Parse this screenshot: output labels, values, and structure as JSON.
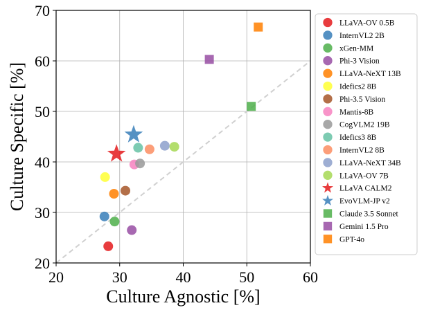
{
  "chart_data": {
    "type": "scatter",
    "xlabel": "Culture Agnostic [%]",
    "ylabel": "Culture Specific [%]",
    "xlim": [
      20,
      60
    ],
    "ylim": [
      20,
      70
    ],
    "xticks": [
      20,
      30,
      40,
      50,
      60
    ],
    "yticks": [
      20,
      30,
      40,
      50,
      60,
      70
    ],
    "grid": true,
    "legend_position": "right",
    "reference_line": {
      "style": "dashed",
      "color": "#cccccc",
      "from": [
        20,
        20
      ],
      "to": [
        60,
        60
      ]
    },
    "series": [
      {
        "name": "LLaVA-OV 0.5B",
        "marker": "circle",
        "color": "#e41a1c",
        "x": 28.2,
        "y": 23.3
      },
      {
        "name": "InternVL2 2B",
        "marker": "circle",
        "color": "#377eb8",
        "x": 27.6,
        "y": 29.2
      },
      {
        "name": "xGen-MM",
        "marker": "circle",
        "color": "#4daf4a",
        "x": 29.2,
        "y": 28.2
      },
      {
        "name": "Phi-3 Vision",
        "marker": "circle",
        "color": "#984ea3",
        "x": 31.9,
        "y": 26.5
      },
      {
        "name": "LLaVA-NeXT 13B",
        "marker": "circle",
        "color": "#ff7f00",
        "x": 29.1,
        "y": 33.7
      },
      {
        "name": "Idefics2 8B",
        "marker": "circle",
        "color": "#ffff33",
        "x": 27.7,
        "y": 37.0
      },
      {
        "name": "Phi-3.5 Vision",
        "marker": "circle",
        "color": "#a65628",
        "x": 30.9,
        "y": 34.3
      },
      {
        "name": "Mantis-8B",
        "marker": "circle",
        "color": "#f781bf",
        "x": 32.3,
        "y": 39.5
      },
      {
        "name": "CogVLM2 19B",
        "marker": "circle",
        "color": "#999999",
        "x": 33.2,
        "y": 39.7
      },
      {
        "name": "Idefics3 8B",
        "marker": "circle",
        "color": "#66c2a5",
        "x": 32.9,
        "y": 42.8
      },
      {
        "name": "InternVL2 8B",
        "marker": "circle",
        "color": "#fc8d62",
        "x": 34.7,
        "y": 42.5
      },
      {
        "name": "LLaVA-NeXT 34B",
        "marker": "circle",
        "color": "#8da0cb",
        "x": 37.1,
        "y": 43.2
      },
      {
        "name": "LLaVA-OV 7B",
        "marker": "circle",
        "color": "#a6d854",
        "x": 38.6,
        "y": 43.0
      },
      {
        "name": "LLaVA CALM2",
        "marker": "star",
        "color": "#e41a1c",
        "x": 29.5,
        "y": 41.6
      },
      {
        "name": "EvoVLM-JP v2",
        "marker": "star",
        "color": "#377eb8",
        "x": 32.2,
        "y": 45.4
      },
      {
        "name": "Claude 3.5 Sonnet",
        "marker": "square",
        "color": "#4daf4a",
        "x": 50.7,
        "y": 51.0
      },
      {
        "name": "Gemini 1.5 Pro",
        "marker": "square",
        "color": "#984ea3",
        "x": 44.1,
        "y": 60.3
      },
      {
        "name": "GPT-4o",
        "marker": "square",
        "color": "#ff7f00",
        "x": 51.8,
        "y": 66.7
      }
    ]
  }
}
